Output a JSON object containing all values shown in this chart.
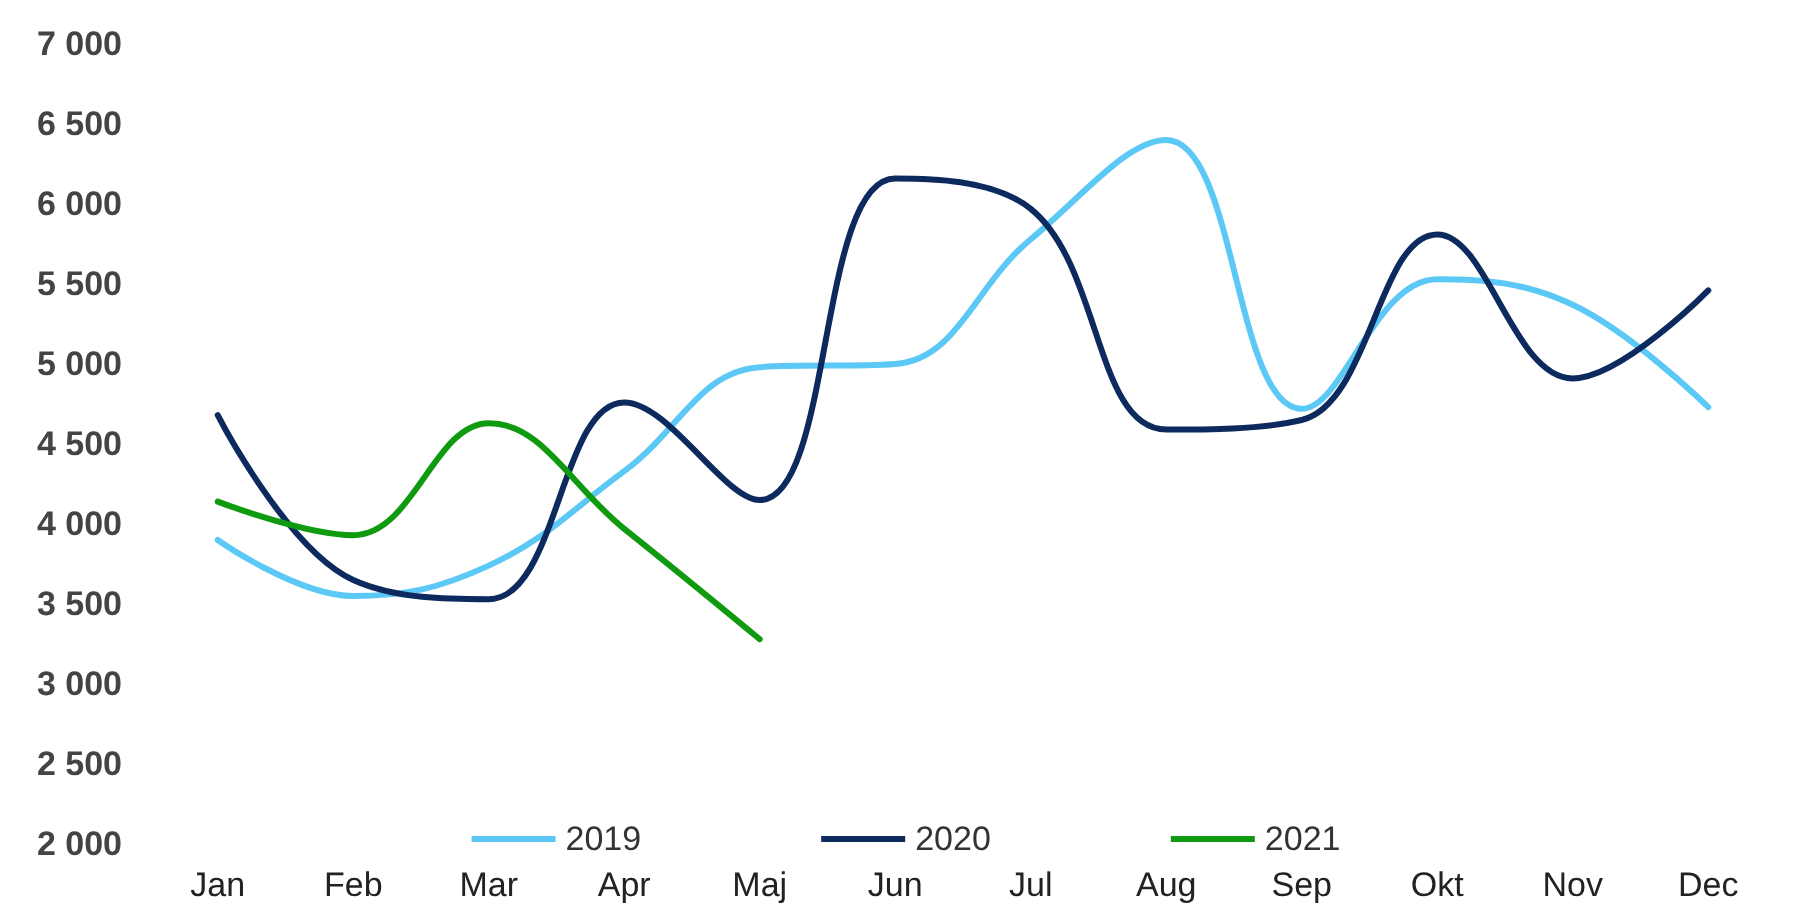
{
  "chart_data": {
    "type": "line",
    "categories": [
      "Jan",
      "Feb",
      "Mar",
      "Apr",
      "Maj",
      "Jun",
      "Jul",
      "Aug",
      "Sep",
      "Okt",
      "Nov",
      "Dec"
    ],
    "series": [
      {
        "name": "2019",
        "color": "#5bc8f5",
        "values": [
          3900,
          3550,
          3740,
          4330,
          4980,
          5000,
          5780,
          6400,
          4720,
          5530,
          5370,
          4730
        ]
      },
      {
        "name": "2020",
        "color": "#0d2a5e",
        "values": [
          4680,
          3650,
          3530,
          4760,
          4150,
          6160,
          5970,
          4590,
          4650,
          5810,
          4910,
          5460
        ]
      },
      {
        "name": "2021",
        "color": "#0f9a0f",
        "values": [
          4140,
          3930,
          4630,
          3970,
          3280,
          null,
          null,
          null,
          null,
          null,
          null,
          null
        ]
      }
    ],
    "ylim": [
      2000,
      7000
    ],
    "yticks": [
      {
        "value": 2000,
        "label": "2 000"
      },
      {
        "value": 2500,
        "label": "2 500"
      },
      {
        "value": 3000,
        "label": "3 000"
      },
      {
        "value": 3500,
        "label": "3 500"
      },
      {
        "value": 4000,
        "label": "4 000"
      },
      {
        "value": 4500,
        "label": "4 500"
      },
      {
        "value": 5000,
        "label": "5 000"
      },
      {
        "value": 5500,
        "label": "5 500"
      },
      {
        "value": 6000,
        "label": "6 000"
      },
      {
        "value": 6500,
        "label": "6 500"
      },
      {
        "value": 7000,
        "label": "7 000"
      }
    ],
    "grid": false,
    "legend": "bottom",
    "marker": "none",
    "line_style": "solid"
  }
}
